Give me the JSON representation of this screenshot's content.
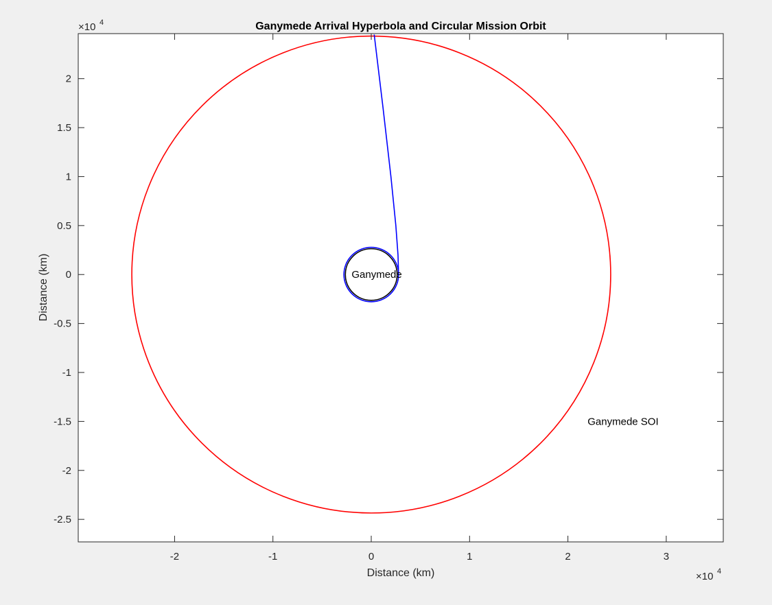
{
  "chart_data": {
    "type": "line",
    "title": "Ganymede Arrival Hyperbola and Circular Mission Orbit",
    "xlabel": "Distance (km)",
    "ylabel": "Distance (km)",
    "x_exponent_label": "×10",
    "x_exponent_power": "4",
    "y_exponent_label": "×10",
    "y_exponent_power": "4",
    "xlim": [
      -29800,
      35800
    ],
    "ylim": [
      -27300,
      24600
    ],
    "xticks": [
      -20000,
      -10000,
      0,
      10000,
      20000,
      30000
    ],
    "xtick_labels": [
      "-2",
      "-1",
      "0",
      "1",
      "2",
      "3"
    ],
    "yticks": [
      -25000,
      -20000,
      -15000,
      -10000,
      -5000,
      0,
      5000,
      10000,
      15000,
      20000
    ],
    "ytick_labels": [
      "-2.5",
      "-2",
      "-1.5",
      "-1",
      "-0.5",
      "0",
      "0.5",
      "1",
      "1.5",
      "2"
    ],
    "grid": false,
    "series": [
      {
        "kind": "circle",
        "cx": 0,
        "cy": 0,
        "r": 24350,
        "color": "#ff0000"
      },
      {
        "kind": "circle",
        "cx": 0,
        "cy": 0,
        "r": 2780,
        "color": "#0000ff"
      },
      {
        "kind": "circle",
        "cx": 0,
        "cy": 0,
        "r": 2634,
        "color": "#000000"
      },
      {
        "kind": "polyline",
        "color": "#0000ff",
        "points": [
          [
            300,
            24500
          ],
          [
            1200,
            17000
          ],
          [
            2000,
            10000
          ],
          [
            2500,
            5000
          ],
          [
            2720,
            2000
          ],
          [
            2780,
            0
          ]
        ]
      }
    ],
    "annotations": [
      {
        "text": "Ganymede",
        "x": -2000,
        "y": 0
      },
      {
        "text": "Ganymede SOI",
        "x": 22000,
        "y": -15000
      }
    ]
  }
}
